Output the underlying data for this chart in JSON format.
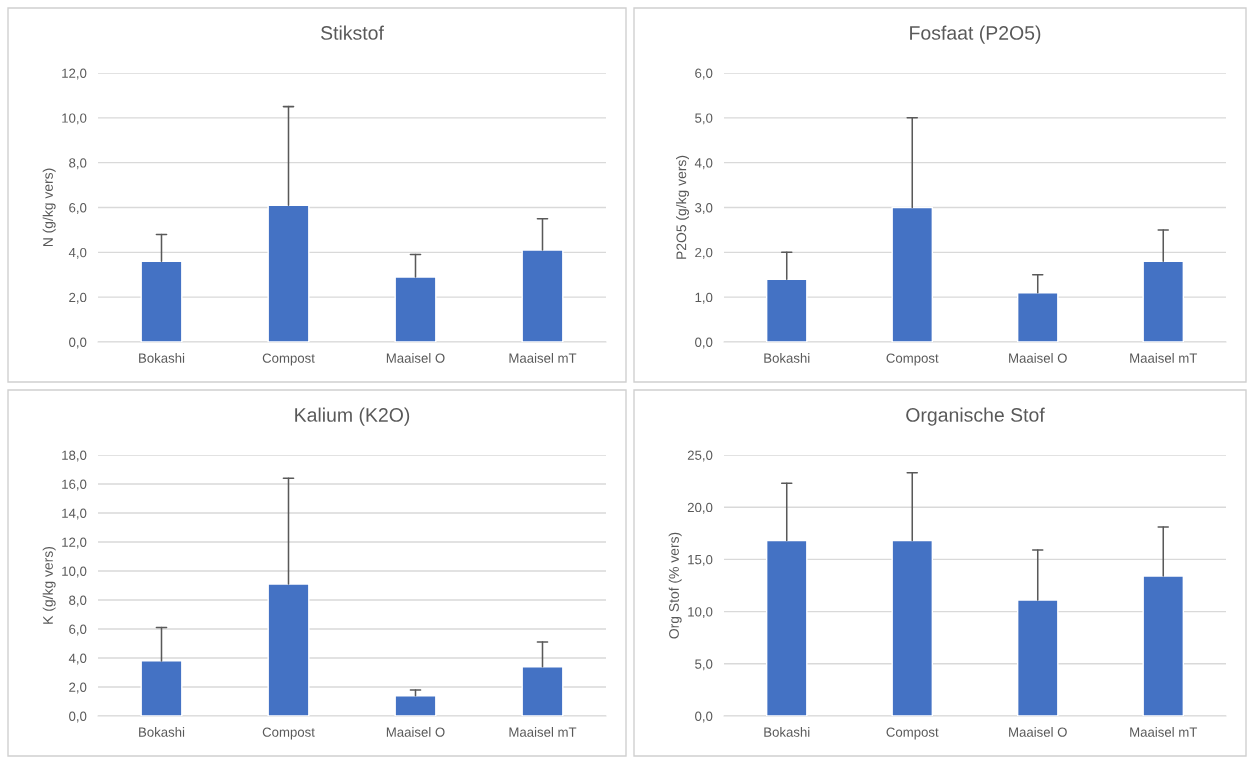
{
  "chart_data": [
    {
      "type": "bar",
      "title": "Stikstof",
      "ylabel": "N (g/kg vers)",
      "categories": [
        "Bokashi",
        "Compost",
        "Maaisel O",
        "Maaisel mT"
      ],
      "color": "#4472c4",
      "values": [
        3.6,
        6.1,
        2.9,
        4.1
      ],
      "errors": [
        [
          3.6,
          4.8
        ],
        [
          6.1,
          10.5
        ],
        [
          2.9,
          3.9
        ],
        [
          4.1,
          5.5
        ]
      ],
      "ylim": [
        0,
        12
      ],
      "yticks": [
        {
          "value": 0,
          "label": "0,0"
        },
        {
          "value": 2,
          "label": "2,0"
        },
        {
          "value": 4,
          "label": "4,0"
        },
        {
          "value": 6,
          "label": "6,0"
        },
        {
          "value": 8,
          "label": "8,0"
        },
        {
          "value": 10,
          "label": "10,0"
        },
        {
          "value": 12,
          "label": "12,0"
        }
      ],
      "grid": "y"
    },
    {
      "type": "bar",
      "title": "Fosfaat (P2O5)",
      "ylabel": "P2O5 (g/kg vers)",
      "categories": [
        "Bokashi",
        "Compost",
        "Maaisel O",
        "Maaisel mT"
      ],
      "color": "#4472c4",
      "values": [
        1.4,
        3.0,
        1.1,
        1.8
      ],
      "errors": [
        [
          1.4,
          2.0
        ],
        [
          3.0,
          5.0
        ],
        [
          1.1,
          1.5
        ],
        [
          1.8,
          2.5
        ]
      ],
      "ylim": [
        0,
        6
      ],
      "yticks": [
        {
          "value": 0,
          "label": "0,0"
        },
        {
          "value": 1,
          "label": "1,0"
        },
        {
          "value": 2,
          "label": "2,0"
        },
        {
          "value": 3,
          "label": "3,0"
        },
        {
          "value": 4,
          "label": "4,0"
        },
        {
          "value": 5,
          "label": "5,0"
        },
        {
          "value": 6,
          "label": "6,0"
        }
      ],
      "grid": "y"
    },
    {
      "type": "bar",
      "title": "Kalium (K2O)",
      "ylabel": "K (g/kg vers)",
      "categories": [
        "Bokashi",
        "Compost",
        "Maaisel O",
        "Maaisel mT"
      ],
      "color": "#4472c4",
      "values": [
        3.8,
        9.1,
        1.4,
        3.4
      ],
      "errors": [
        [
          3.8,
          6.1
        ],
        [
          9.1,
          16.4
        ],
        [
          1.4,
          1.8
        ],
        [
          3.4,
          5.1
        ]
      ],
      "ylim": [
        0,
        18
      ],
      "yticks": [
        {
          "value": 0,
          "label": "0,0"
        },
        {
          "value": 2,
          "label": "2,0"
        },
        {
          "value": 4,
          "label": "4,0"
        },
        {
          "value": 6,
          "label": "6,0"
        },
        {
          "value": 8,
          "label": "8,0"
        },
        {
          "value": 10,
          "label": "10,0"
        },
        {
          "value": 12,
          "label": "12,0"
        },
        {
          "value": 14,
          "label": "14,0"
        },
        {
          "value": 16,
          "label": "16,0"
        },
        {
          "value": 18,
          "label": "18,0"
        }
      ],
      "grid": "y"
    },
    {
      "type": "bar",
      "title": "Organische Stof",
      "ylabel": "Org Stof (% vers)",
      "categories": [
        "Bokashi",
        "Compost",
        "Maaisel O",
        "Maaisel mT"
      ],
      "color": "#4472c4",
      "values": [
        16.8,
        16.8,
        11.1,
        13.4
      ],
      "errors": [
        [
          16.8,
          22.3
        ],
        [
          16.8,
          23.3
        ],
        [
          11.1,
          15.9
        ],
        [
          13.4,
          18.1
        ]
      ],
      "ylim": [
        0,
        25
      ],
      "yticks": [
        {
          "value": 0,
          "label": "0,0"
        },
        {
          "value": 5,
          "label": "5,0"
        },
        {
          "value": 10,
          "label": "10,0"
        },
        {
          "value": 15,
          "label": "15,0"
        },
        {
          "value": 20,
          "label": "20,0"
        },
        {
          "value": 25,
          "label": "25,0"
        }
      ],
      "grid": "y"
    }
  ]
}
